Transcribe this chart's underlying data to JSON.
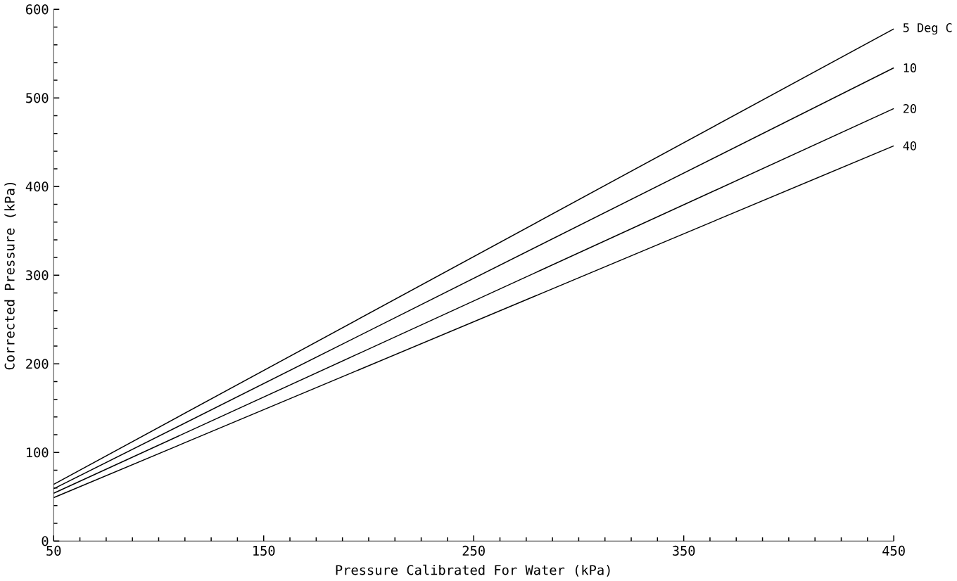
{
  "chart_data": {
    "type": "line",
    "xlabel": "Pressure Calibrated For Water    (kPa)",
    "ylabel": "Corrected Pressure  (kPa)",
    "x": [
      50,
      450
    ],
    "xlim": [
      50,
      450
    ],
    "ylim": [
      0,
      600
    ],
    "xticks": [
      50,
      150,
      250,
      350,
      450
    ],
    "yticks": [
      0,
      100,
      200,
      300,
      400,
      500,
      600
    ],
    "series": [
      {
        "name": "5 Deg C",
        "color": "#000000",
        "values": [
          64,
          578
        ]
      },
      {
        "name": "10",
        "color": "#000000",
        "values": [
          59,
          534
        ]
      },
      {
        "name": "20",
        "color": "#000000",
        "values": [
          54,
          488
        ]
      },
      {
        "name": "40",
        "color": "#000000",
        "values": [
          49,
          446
        ]
      }
    ],
    "grid": false
  }
}
